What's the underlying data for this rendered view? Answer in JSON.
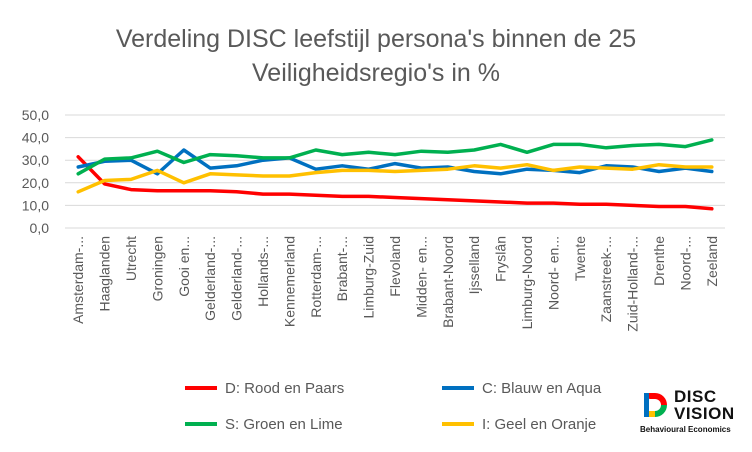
{
  "chart_data": {
    "type": "line",
    "title_lines": [
      "Verdeling DISC leefstijl persona's binnen de 25",
      "Veiligheidsregio's in %"
    ],
    "categories": [
      "Amsterdam-...",
      "Haaglanden",
      "Utrecht",
      "Groningen",
      "Gooi en...",
      "Gelderland-...",
      "Gelderland-...",
      "Hollands-...",
      "Kennemerland",
      "Rotterdam-...",
      "Brabant-...",
      "Limburg-Zuid",
      "Flevoland",
      "Midden- en...",
      "Brabant-Noord",
      "Ijsselland",
      "Fryslân",
      "Limburg-Noord",
      "Noord- en...",
      "Twente",
      "Zaanstreek-...",
      "Zuid-Holland-...",
      "Drenthe",
      "Noord-...",
      "Zeeland"
    ],
    "y_ticks": [
      "0,0",
      "10,0",
      "20,0",
      "30,0",
      "40,0",
      "50,0"
    ],
    "ylim": [
      0,
      50
    ],
    "grid": true,
    "legend_position": "bottom",
    "series": [
      {
        "name": "D: Rood en Paars",
        "color": "#ff0000",
        "values": [
          31.5,
          19.5,
          17.0,
          16.5,
          16.5,
          16.5,
          16.0,
          15.0,
          15.0,
          14.5,
          14.0,
          14.0,
          13.5,
          13.0,
          12.5,
          12.0,
          11.5,
          11.0,
          11.0,
          10.5,
          10.5,
          10.0,
          9.5,
          9.5,
          8.5
        ]
      },
      {
        "name": "C: Blauw en Aqua",
        "color": "#0070c0",
        "values": [
          27.0,
          29.5,
          30.0,
          24.0,
          34.5,
          26.5,
          27.5,
          30.0,
          31.0,
          26.0,
          27.5,
          26.0,
          28.5,
          26.5,
          27.0,
          25.0,
          24.0,
          26.0,
          25.5,
          24.5,
          27.5,
          27.0,
          25.0,
          26.5,
          25.0
        ]
      },
      {
        "name": "S: Groen en Lime",
        "color": "#00b050",
        "values": [
          24.0,
          30.5,
          31.0,
          34.0,
          29.0,
          32.5,
          32.0,
          31.0,
          31.0,
          34.5,
          32.5,
          33.5,
          32.5,
          34.0,
          33.5,
          34.5,
          37.0,
          33.5,
          37.0,
          37.0,
          35.5,
          36.5,
          37.0,
          36.0,
          39.0
        ]
      },
      {
        "name": "I: Geel en Oranje",
        "color": "#ffc000",
        "values": [
          16.0,
          21.0,
          21.5,
          25.5,
          20.0,
          24.0,
          23.5,
          23.0,
          23.0,
          24.5,
          25.5,
          25.5,
          25.0,
          25.5,
          26.0,
          27.5,
          26.5,
          28.0,
          25.5,
          27.0,
          26.5,
          26.0,
          28.0,
          27.0,
          27.0
        ]
      }
    ]
  },
  "logo": {
    "line1": "DISC",
    "line2": "VISION",
    "tagline": "Behavioural Economics",
    "colors": [
      "#ff0000",
      "#ffc000",
      "#00b050",
      "#0070c0"
    ]
  }
}
